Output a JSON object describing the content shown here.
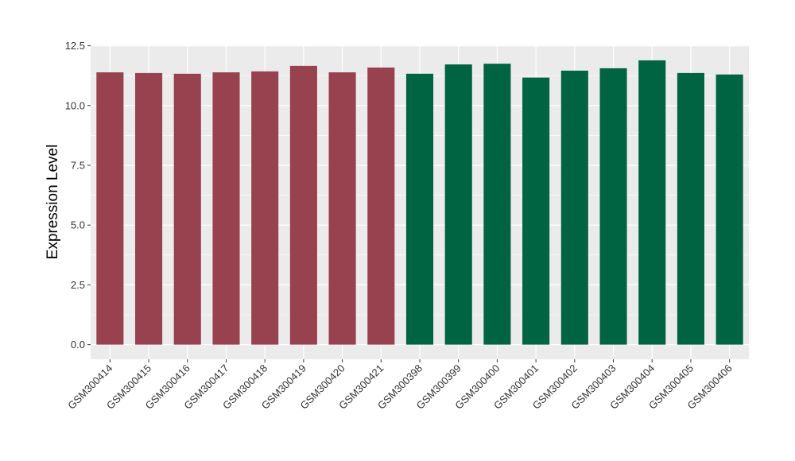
{
  "chart_data": {
    "type": "bar",
    "title": "",
    "xlabel": "",
    "ylabel": "Expression Level",
    "ylim": [
      0,
      12.5
    ],
    "yticks": [
      0.0,
      2.5,
      5.0,
      7.5,
      10.0,
      12.5
    ],
    "ytick_labels": [
      "0.0",
      "2.5",
      "5.0",
      "7.5",
      "10.0",
      "12.5"
    ],
    "grid": true,
    "legend": "none",
    "categories": [
      "GSM300414",
      "GSM300415",
      "GSM300416",
      "GSM300417",
      "GSM300418",
      "GSM300419",
      "GSM300420",
      "GSM300421",
      "GSM300398",
      "GSM300399",
      "GSM300400",
      "GSM300401",
      "GSM300402",
      "GSM300403",
      "GSM300404",
      "GSM300405",
      "GSM300406"
    ],
    "values": [
      11.39,
      11.36,
      11.33,
      11.39,
      11.43,
      11.66,
      11.39,
      11.59,
      11.33,
      11.72,
      11.75,
      11.17,
      11.46,
      11.56,
      11.89,
      11.36,
      11.3
    ],
    "bar_colors": [
      "#99424f",
      "#99424f",
      "#99424f",
      "#99424f",
      "#99424f",
      "#99424f",
      "#99424f",
      "#99424f",
      "#006443",
      "#006443",
      "#006443",
      "#006443",
      "#006443",
      "#006443",
      "#006443",
      "#006443",
      "#006443"
    ],
    "colors": {
      "group_a": "#99424f",
      "group_b": "#006443",
      "panel": "#ebebeb",
      "grid": "#ffffff"
    }
  }
}
